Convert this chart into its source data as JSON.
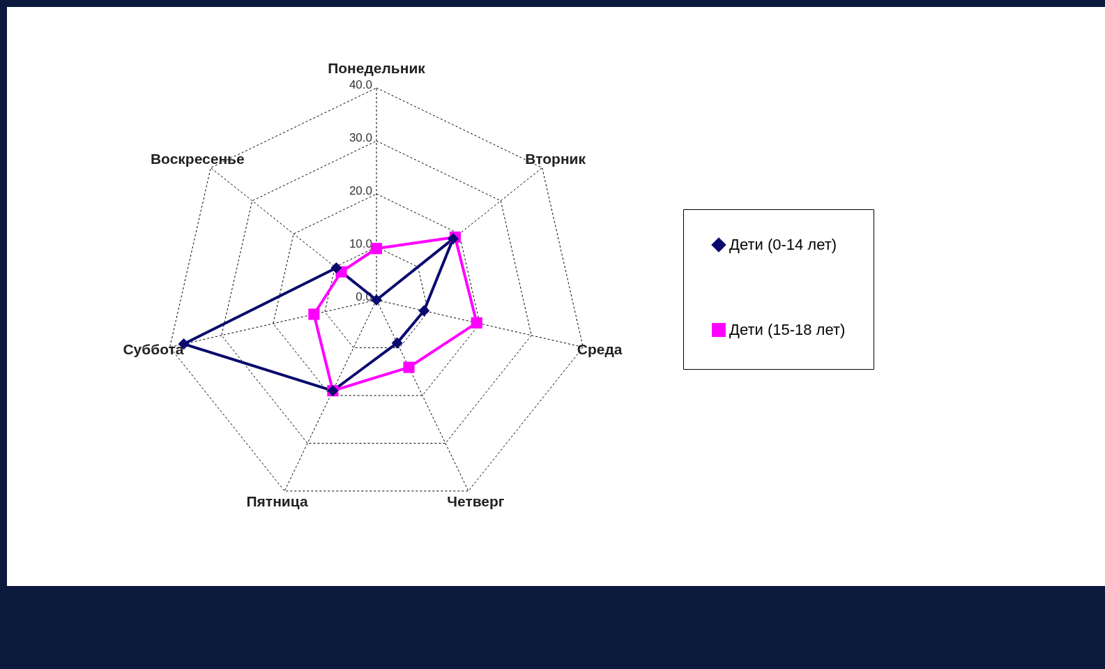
{
  "chart_data": {
    "type": "radar",
    "categories": [
      "Понедельник",
      "Вторник",
      "Среда",
      "Четверг",
      "Пятница",
      "Суббота",
      "Воскресенье"
    ],
    "series": [
      {
        "name": "Дети (0-14 лет)",
        "color": "#0a0a6e",
        "marker": "diamond",
        "values": [
          0,
          18.5,
          9.2,
          9,
          19,
          37.3,
          9.7
        ]
      },
      {
        "name": "Дети (15-18 лет)",
        "color": "#ff00ff",
        "marker": "square",
        "values": [
          9.7,
          19,
          19.4,
          14.1,
          19,
          12.1,
          8.5
        ]
      }
    ],
    "ylim": [
      0,
      40
    ],
    "yticks": [
      {
        "value": 0,
        "label": "0.0"
      },
      {
        "value": 10,
        "label": "10.0"
      },
      {
        "value": 20,
        "label": "20.0"
      },
      {
        "value": 30,
        "label": "30.0"
      },
      {
        "value": 40,
        "label": "40.0"
      }
    ],
    "grid": true,
    "legend": "right"
  }
}
